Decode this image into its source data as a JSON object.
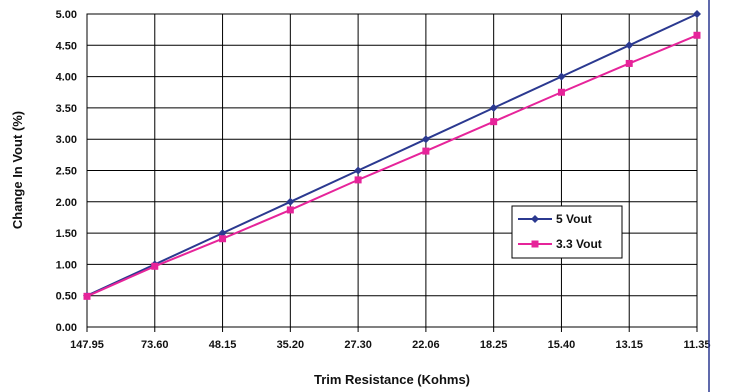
{
  "chart_data": {
    "type": "line",
    "title": "",
    "xlabel": "Trim Resistance (Kohms)",
    "ylabel": "Change In Vout (%)",
    "categories": [
      "147.95",
      "73.60",
      "48.15",
      "35.20",
      "27.30",
      "22.06",
      "18.25",
      "15.40",
      "13.15",
      "11.35"
    ],
    "ylim": [
      0,
      5
    ],
    "yticks": [
      "0.00",
      "0.50",
      "1.00",
      "1.50",
      "2.00",
      "2.50",
      "3.00",
      "3.50",
      "4.00",
      "4.50",
      "5.00"
    ],
    "grid": true,
    "legend_position": "lower-right",
    "series": [
      {
        "name": "5 Vout",
        "color": "#2b3990",
        "marker": "diamond",
        "values": [
          0.5,
          1.0,
          1.5,
          2.0,
          2.5,
          3.0,
          3.5,
          4.0,
          4.5,
          5.0
        ]
      },
      {
        "name": "3.3 Vout",
        "color": "#e6249a",
        "marker": "square",
        "values": [
          0.49,
          0.97,
          1.41,
          1.87,
          2.35,
          2.81,
          3.28,
          3.75,
          4.21,
          4.66
        ]
      }
    ]
  }
}
